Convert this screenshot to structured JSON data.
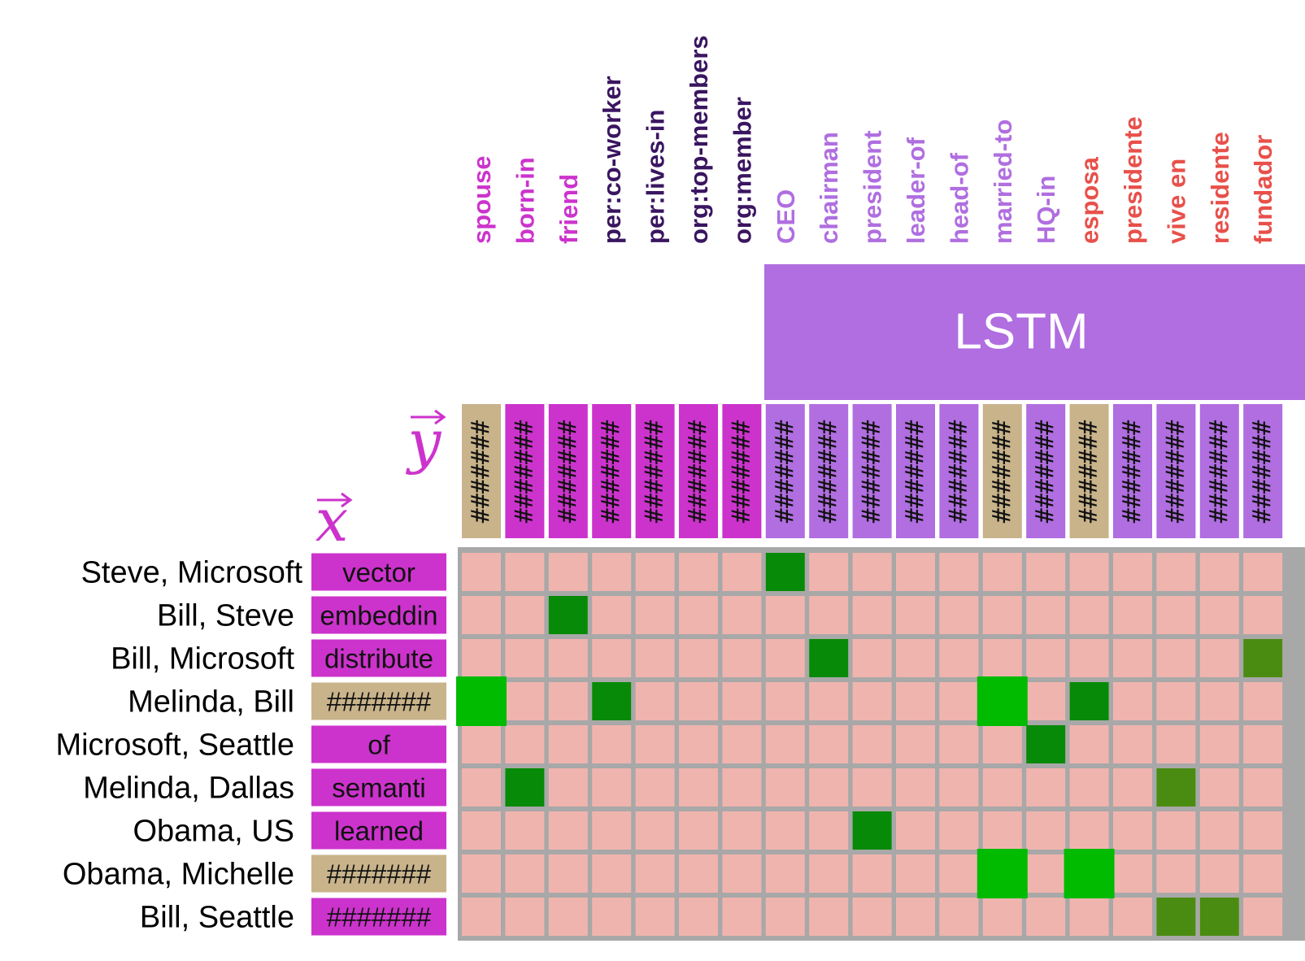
{
  "columns": [
    {
      "label": "spouse",
      "label_color": "#cc33cc",
      "box_color": "#c8b38a"
    },
    {
      "label": "born-in",
      "label_color": "#cc33cc",
      "box_color": "#cc33cc"
    },
    {
      "label": "friend",
      "label_color": "#cc33cc",
      "box_color": "#cc33cc"
    },
    {
      "label": "per:co-worker",
      "label_color": "#3a1560",
      "box_color": "#cc33cc"
    },
    {
      "label": "per:lives-in",
      "label_color": "#3a1560",
      "box_color": "#cc33cc"
    },
    {
      "label": "org:top-members",
      "label_color": "#3a1560",
      "box_color": "#cc33cc"
    },
    {
      "label": "org:member",
      "label_color": "#3a1560",
      "box_color": "#cc33cc"
    },
    {
      "label": "CEO",
      "label_color": "#b06ee0",
      "box_color": "#b06ee0"
    },
    {
      "label": "chairman",
      "label_color": "#b06ee0",
      "box_color": "#b06ee0"
    },
    {
      "label": "president",
      "label_color": "#b06ee0",
      "box_color": "#b06ee0"
    },
    {
      "label": "leader-of",
      "label_color": "#b06ee0",
      "box_color": "#b06ee0"
    },
    {
      "label": "head-of",
      "label_color": "#b06ee0",
      "box_color": "#b06ee0"
    },
    {
      "label": "married-to",
      "label_color": "#b06ee0",
      "box_color": "#c8b38a"
    },
    {
      "label": "HQ-in",
      "label_color": "#b06ee0",
      "box_color": "#b06ee0"
    },
    {
      "label": "esposa",
      "label_color": "#e8504a",
      "box_color": "#c8b38a"
    },
    {
      "label": "presidente",
      "label_color": "#e8504a",
      "box_color": "#b06ee0"
    },
    {
      "label": "vive en",
      "label_color": "#e8504a",
      "box_color": "#b06ee0"
    },
    {
      "label": "residente",
      "label_color": "#e8504a",
      "box_color": "#b06ee0"
    },
    {
      "label": "fundador",
      "label_color": "#e8504a",
      "box_color": "#b06ee0"
    }
  ],
  "column_box_text": "#######",
  "lstm_label": "LSTM",
  "y_vector": "y",
  "x_vector": "x",
  "rows": [
    {
      "label": "Steve, Microsoft",
      "box_text": "vector",
      "box_color": "#cc33cc"
    },
    {
      "label": "Bill, Steve",
      "box_text": "embeddin",
      "box_color": "#cc33cc"
    },
    {
      "label": "Bill, Microsoft",
      "box_text": "distribute",
      "box_color": "#cc33cc"
    },
    {
      "label": "Melinda, Bill",
      "box_text": "#######",
      "box_color": "#c8b38a"
    },
    {
      "label": "Microsoft, Seattle",
      "box_text": "of",
      "box_color": "#cc33cc"
    },
    {
      "label": "Melinda, Dallas",
      "box_text": "semanti",
      "box_color": "#cc33cc"
    },
    {
      "label": "Obama, US",
      "box_text": "learned",
      "box_color": "#cc33cc"
    },
    {
      "label": "Obama, Michelle",
      "box_text": "#######",
      "box_color": "#c8b38a"
    },
    {
      "label": "Bill, Seattle",
      "box_text": "#######",
      "box_color": "#cc33cc"
    }
  ],
  "highlights": [
    {
      "row": 0,
      "col": 7,
      "color": "#078a07"
    },
    {
      "row": 1,
      "col": 2,
      "color": "#078a07"
    },
    {
      "row": 2,
      "col": 8,
      "color": "#078a07"
    },
    {
      "row": 2,
      "col": 18,
      "color": "#4a8c12"
    },
    {
      "row": 3,
      "col": 0,
      "color": "#00bb00",
      "large": true
    },
    {
      "row": 3,
      "col": 3,
      "color": "#078a07"
    },
    {
      "row": 3,
      "col": 12,
      "color": "#00bb00",
      "large": true
    },
    {
      "row": 3,
      "col": 14,
      "color": "#078a07"
    },
    {
      "row": 4,
      "col": 13,
      "color": "#078a07"
    },
    {
      "row": 5,
      "col": 1,
      "color": "#078a07"
    },
    {
      "row": 5,
      "col": 16,
      "color": "#4a8c12"
    },
    {
      "row": 6,
      "col": 9,
      "color": "#078a07"
    },
    {
      "row": 7,
      "col": 12,
      "color": "#00bb00",
      "large": true
    },
    {
      "row": 7,
      "col": 14,
      "color": "#00bb00",
      "large": true
    },
    {
      "row": 8,
      "col": 16,
      "color": "#4a8c12"
    },
    {
      "row": 8,
      "col": 17,
      "color": "#4a8c12"
    }
  ]
}
